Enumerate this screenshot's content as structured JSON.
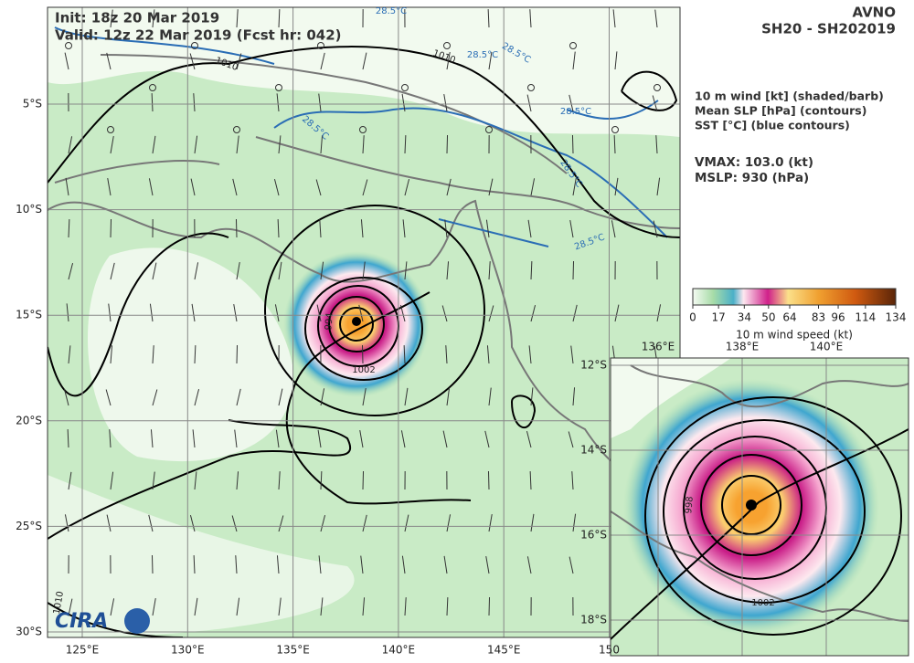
{
  "header": {
    "init": "Init:   18z 20 Mar 2019",
    "valid": "Valid: 12z 22 Mar 2019 (Fcst hr: 042)",
    "model": "AVNO",
    "storm": "SH20 - SH202019"
  },
  "legend_text": [
    "10 m wind [kt] (shaded/barb)",
    "Mean SLP [hPa] (contours)",
    "SST [°C] (blue contours)"
  ],
  "stats": {
    "vmax": "VMAX: 103.0 (kt)",
    "mslp": "MSLP:  930 (hPa)"
  },
  "colorbar": {
    "ticks": [
      0,
      17,
      34,
      50,
      64,
      83,
      96,
      114,
      134
    ],
    "label": "10 m wind speed (kt)"
  },
  "main_map": {
    "lon_labels": [
      "125°E",
      "130°E",
      "135°E",
      "140°E",
      "145°E",
      "150"
    ],
    "lat_labels": [
      "5°S",
      "10°S",
      "15°S",
      "20°S",
      "25°S",
      "30°S"
    ],
    "slp_labels": [
      "1010",
      "1010",
      "1010",
      "1002",
      "994"
    ],
    "sst_labels": [
      "28.5°C",
      "28.5°C",
      "28.5°C",
      "28.5°C",
      "28.5°C",
      "28.5°C",
      "28.5°C"
    ]
  },
  "inset": {
    "lon_labels": [
      "136°E",
      "138°E",
      "140°E"
    ],
    "lat_labels": [
      "12°S",
      "14°S",
      "16°S",
      "18°S"
    ],
    "slp_labels": [
      "998",
      "1002"
    ]
  },
  "logo": "CIRA"
}
